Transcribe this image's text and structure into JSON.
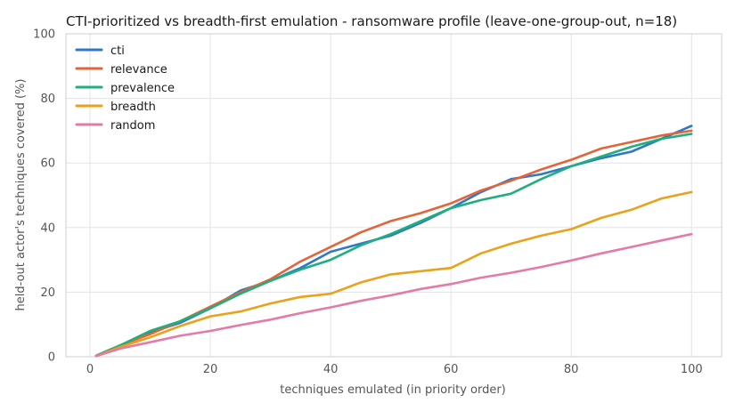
{
  "chart_data": {
    "type": "line",
    "title": "CTI-prioritized vs breadth-first emulation - ransomware profile (leave-one-group-out, n=18)",
    "xlabel": "techniques emulated (in priority order)",
    "ylabel": "held-out actor's techniques covered (%)",
    "xlim": [
      -4,
      105
    ],
    "ylim": [
      0,
      100
    ],
    "xticks": [
      0,
      20,
      40,
      60,
      80,
      100
    ],
    "yticks": [
      0,
      20,
      40,
      60,
      80,
      100
    ],
    "grid": true,
    "legend_position": "top-left",
    "series": [
      {
        "name": "cti",
        "color": "#2f78c8",
        "x": [
          1,
          5,
          10,
          15,
          20,
          25,
          30,
          35,
          40,
          45,
          50,
          55,
          60,
          65,
          70,
          75,
          80,
          85,
          90,
          95,
          100
        ],
        "y": [
          0.3,
          3.5,
          7.5,
          10.5,
          15,
          20.5,
          23.5,
          27.5,
          32.5,
          35,
          37.5,
          41.5,
          46,
          51,
          55,
          56.5,
          59,
          61.5,
          63.5,
          67.5,
          71.5
        ]
      },
      {
        "name": "relevance",
        "color": "#e2653a",
        "x": [
          1,
          5,
          10,
          15,
          20,
          25,
          30,
          35,
          40,
          45,
          50,
          55,
          60,
          65,
          70,
          75,
          80,
          85,
          90,
          95,
          100
        ],
        "y": [
          0.3,
          3.5,
          7,
          11,
          15.5,
          20,
          24,
          29.5,
          34,
          38.5,
          42,
          44.5,
          47.5,
          51.5,
          54.5,
          58,
          61,
          64.5,
          66.5,
          68.5,
          70
        ]
      },
      {
        "name": "prevalence",
        "color": "#1fae7e",
        "x": [
          1,
          5,
          10,
          15,
          20,
          25,
          30,
          35,
          40,
          45,
          50,
          55,
          60,
          65,
          70,
          75,
          80,
          85,
          90,
          95,
          100
        ],
        "y": [
          0.3,
          3.5,
          8,
          11,
          15,
          19.5,
          23.5,
          27,
          30,
          34.5,
          38,
          42,
          46,
          48.5,
          50.5,
          55,
          59,
          62,
          65,
          67.5,
          69
        ]
      },
      {
        "name": "breadth",
        "color": "#e9a21a",
        "x": [
          1,
          5,
          10,
          15,
          20,
          25,
          30,
          35,
          40,
          45,
          50,
          55,
          60,
          65,
          70,
          75,
          80,
          85,
          90,
          95,
          100
        ],
        "y": [
          0.2,
          3,
          6,
          9.5,
          12.5,
          14,
          16.5,
          18.5,
          19.5,
          23,
          25.5,
          26.5,
          27.5,
          32,
          35,
          37.5,
          39.5,
          43,
          45.5,
          49,
          51
        ]
      },
      {
        "name": "random",
        "color": "#e27ba8",
        "x": [
          1,
          5,
          10,
          15,
          20,
          25,
          30,
          35,
          40,
          45,
          50,
          55,
          60,
          65,
          70,
          75,
          80,
          85,
          90,
          95,
          100
        ],
        "y": [
          0.2,
          2.5,
          4.5,
          6.5,
          8,
          9.8,
          11.5,
          13.5,
          15.3,
          17.3,
          19,
          21,
          22.5,
          24.5,
          26,
          27.8,
          29.8,
          32,
          34,
          36,
          38
        ]
      }
    ]
  }
}
